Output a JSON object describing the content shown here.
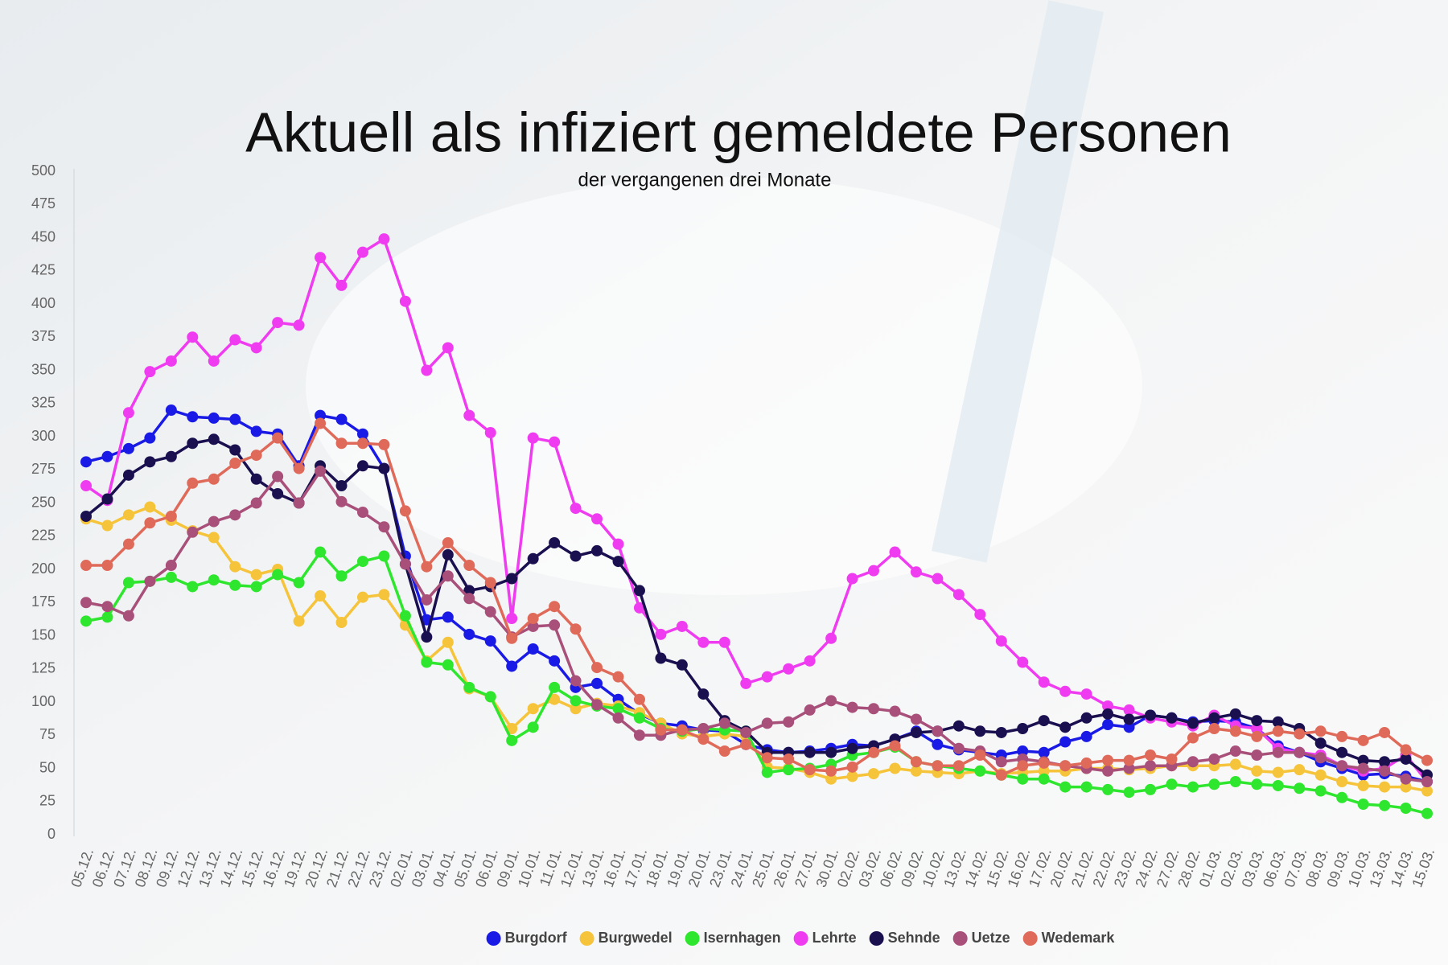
{
  "chart_data": {
    "type": "line",
    "title": "Aktuell als infiziert gemeldete Personen",
    "subtitle": "der vergangenen drei Monate",
    "categories": [
      "05.12.",
      "06.12.",
      "07.12.",
      "08.12.",
      "09.12.",
      "12.12.",
      "13.12.",
      "14.12.",
      "15.12.",
      "16.12.",
      "19.12.",
      "20.12.",
      "21.12.",
      "22.12.",
      "23.12.",
      "02.01.",
      "03.01.",
      "04.01.",
      "05.01.",
      "06.01.",
      "09.01.",
      "10.01.",
      "11.01.",
      "12.01.",
      "13.01.",
      "16.01.",
      "17.01.",
      "18.01.",
      "19.01.",
      "20.01.",
      "23.01.",
      "24.01.",
      "25.01.",
      "26.01.",
      "27.01.",
      "30.01.",
      "02.02.",
      "03.02.",
      "06.02.",
      "09.02.",
      "10.02.",
      "13.02.",
      "14.02.",
      "15.02.",
      "16.02.",
      "17.02.",
      "20.02.",
      "21.02.",
      "22.02.",
      "23.02.",
      "24.02.",
      "27.02.",
      "28.02.",
      "01.03.",
      "02.03.",
      "03.03.",
      "06.03.",
      "07.03.",
      "08.03.",
      "09.03.",
      "10.03.",
      "13.03.",
      "14.03.",
      "15.03."
    ],
    "series": [
      {
        "name": "Burgdorf",
        "color": "#1a1ae6",
        "values": [
          281,
          285,
          291,
          299,
          320,
          315,
          314,
          313,
          304,
          302,
          278,
          316,
          313,
          302,
          276,
          210,
          162,
          164,
          151,
          146,
          127,
          140,
          131,
          111,
          114,
          102,
          91,
          84,
          82,
          79,
          78,
          68,
          64,
          62,
          63,
          65,
          68,
          67,
          72,
          78,
          68,
          64,
          62,
          60,
          63,
          62,
          70,
          74,
          83,
          81,
          90,
          88,
          85,
          86,
          85,
          80,
          67,
          62,
          55,
          50,
          45,
          46,
          44,
          40
        ]
      },
      {
        "name": "Burgwedel",
        "color": "#f5c43a",
        "values": [
          238,
          233,
          241,
          247,
          237,
          229,
          224,
          202,
          196,
          200,
          161,
          180,
          160,
          179,
          181,
          158,
          131,
          145,
          110,
          104,
          80,
          95,
          102,
          95,
          99,
          97,
          92,
          84,
          76,
          74,
          76,
          74,
          51,
          50,
          47,
          42,
          44,
          46,
          50,
          48,
          47,
          46,
          48,
          46,
          47,
          48,
          48,
          50,
          50,
          49,
          50,
          52,
          52,
          52,
          53,
          48,
          47,
          49,
          45,
          40,
          37,
          36,
          36,
          33
        ]
      },
      {
        "name": "Isernhagen",
        "color": "#2ee62e",
        "values": [
          161,
          164,
          190,
          191,
          194,
          187,
          192,
          188,
          187,
          196,
          190,
          213,
          195,
          206,
          210,
          165,
          130,
          128,
          111,
          104,
          71,
          81,
          111,
          101,
          97,
          95,
          88,
          80,
          78,
          80,
          79,
          78,
          47,
          49,
          50,
          53,
          60,
          62,
          66,
          55,
          52,
          50,
          48,
          45,
          42,
          42,
          36,
          36,
          34,
          32,
          34,
          38,
          36,
          38,
          40,
          38,
          37,
          35,
          33,
          28,
          23,
          22,
          20,
          16
        ]
      },
      {
        "name": "Lehrte",
        "color": "#f03cf0",
        "values": [
          263,
          252,
          318,
          349,
          357,
          375,
          357,
          373,
          367,
          386,
          384,
          435,
          414,
          439,
          449,
          402,
          350,
          367,
          316,
          303,
          163,
          299,
          296,
          246,
          238,
          219,
          171,
          151,
          157,
          145,
          145,
          114,
          119,
          125,
          131,
          148,
          193,
          199,
          213,
          198,
          193,
          181,
          166,
          146,
          130,
          115,
          108,
          106,
          97,
          94,
          88,
          85,
          82,
          90,
          82,
          80,
          65,
          62,
          60,
          52,
          48,
          50,
          60,
          40
        ]
      },
      {
        "name": "Sehnde",
        "color": "#1a1050",
        "values": [
          240,
          253,
          271,
          281,
          285,
          295,
          298,
          290,
          268,
          257,
          250,
          278,
          263,
          278,
          276,
          204,
          149,
          211,
          184,
          187,
          193,
          208,
          220,
          210,
          214,
          206,
          184,
          133,
          128,
          106,
          86,
          78,
          62,
          62,
          62,
          62,
          65,
          67,
          72,
          77,
          78,
          82,
          78,
          77,
          80,
          86,
          81,
          88,
          91,
          87,
          90,
          88,
          84,
          88,
          91,
          86,
          85,
          80,
          69,
          62,
          56,
          55,
          57,
          45
        ]
      },
      {
        "name": "Uetze",
        "color": "#a8507a",
        "values": [
          175,
          172,
          165,
          191,
          203,
          228,
          236,
          241,
          250,
          270,
          250,
          274,
          251,
          243,
          232,
          204,
          177,
          195,
          178,
          168,
          149,
          157,
          158,
          116,
          98,
          88,
          75,
          75,
          79,
          80,
          84,
          77,
          84,
          85,
          94,
          101,
          96,
          95,
          93,
          87,
          78,
          65,
          63,
          55,
          57,
          55,
          52,
          50,
          48,
          50,
          52,
          52,
          55,
          57,
          63,
          60,
          62,
          62,
          58,
          52,
          50,
          48,
          42,
          40
        ]
      },
      {
        "name": "Wedemark",
        "color": "#e06a5a",
        "values": [
          203,
          203,
          219,
          235,
          240,
          265,
          268,
          280,
          286,
          299,
          276,
          310,
          295,
          295,
          294,
          244,
          202,
          220,
          203,
          190,
          148,
          163,
          172,
          155,
          126,
          119,
          102,
          79,
          79,
          72,
          63,
          68,
          58,
          57,
          49,
          48,
          51,
          62,
          67,
          55,
          52,
          52,
          60,
          45,
          52,
          54,
          52,
          54,
          56,
          56,
          60,
          57,
          73,
          80,
          78,
          74,
          78,
          76,
          78,
          74,
          71,
          77,
          64,
          56
        ]
      }
    ],
    "ylim": [
      0,
      500
    ],
    "yticks": [
      0,
      25,
      50,
      75,
      100,
      125,
      150,
      175,
      200,
      225,
      250,
      275,
      300,
      325,
      350,
      375,
      400,
      425,
      450,
      475,
      500
    ],
    "grid": false
  }
}
